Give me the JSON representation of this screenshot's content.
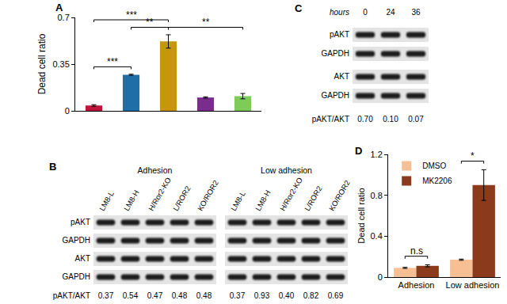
{
  "chart_data": [
    {
      "type": "bar",
      "title": "A",
      "y_label": "Dead cell ratio",
      "categories": [
        null,
        null,
        null,
        null,
        null
      ],
      "values": [
        0.04,
        0.27,
        0.52,
        0.1,
        0.11
      ],
      "errors": [
        0.006,
        0.004,
        0.05,
        0.005,
        0.02
      ],
      "colors": [
        "#c0143c",
        "#1f6ea8",
        "#c8960c",
        "#7b2d8e",
        "#7ecb5a"
      ],
      "ylim": [
        0,
        0.7
      ],
      "yticks": [
        0,
        0.35,
        0.7
      ],
      "grid": false,
      "tick_labels": "y",
      "significance": [
        {
          "from": 0,
          "to": 1,
          "label": "***"
        },
        {
          "from": 0,
          "to": 2,
          "label": "***"
        },
        {
          "from": 1,
          "to": 2,
          "label": "**"
        },
        {
          "from": 2,
          "to": 4,
          "label": "**"
        }
      ]
    },
    {
      "type": "bar",
      "title": "D",
      "y_label": "Dead cell ratio",
      "categories": [
        "Adhesion",
        "Low adhesion"
      ],
      "series": [
        {
          "name": "DMSO",
          "color": "#f7bf94",
          "values": [
            0.09,
            0.17
          ],
          "errors": [
            0.005,
            0.006
          ]
        },
        {
          "name": "MK2206",
          "color": "#8c3a1c",
          "values": [
            0.11,
            0.9
          ],
          "errors": [
            0.01,
            0.15
          ]
        }
      ],
      "ylim": [
        0,
        1.2
      ],
      "yticks": [
        0,
        0.4,
        0.8,
        1.2
      ],
      "grid": false,
      "legend": "top left",
      "significance": [
        {
          "category": "Adhesion",
          "label": "n.s"
        },
        {
          "category": "Low adhesion",
          "label": "*"
        }
      ]
    }
  ],
  "blots": [
    {
      "panel": "B",
      "groups": [
        {
          "label": "Adhesion",
          "lanes": [
            "LM8-L",
            "LM8-H",
            "H/Ror2-KO",
            "L/ROR2",
            "KO/ROR2"
          ]
        },
        {
          "label": "Low adhesion",
          "lanes": [
            "LM8-L",
            "LM8-H",
            "H/Ror2-KO",
            "L/ROR2",
            "KO/ROR2"
          ]
        }
      ],
      "rows": [
        "pAKT",
        "GAPDH",
        "AKT",
        "GAPDH"
      ],
      "ratio": {
        "label": "pAKT/AKT",
        "values": [
          [
            "0.37",
            "0.54",
            "0.47",
            "0.48",
            "0.48"
          ],
          [
            "0.37",
            "0.93",
            "0.40",
            "0.82",
            "0.69"
          ]
        ]
      }
    },
    {
      "panel": "C",
      "lane_title": "hours",
      "groups": [
        {
          "lanes": [
            "0",
            "24",
            "36"
          ]
        }
      ],
      "rows": [
        "pAKT",
        "GAPDH",
        "AKT",
        "GAPDH"
      ],
      "ratio": {
        "label": "pAKT/AKT",
        "values": [
          [
            "0.70",
            "0.10",
            "0.07"
          ]
        ]
      }
    }
  ]
}
